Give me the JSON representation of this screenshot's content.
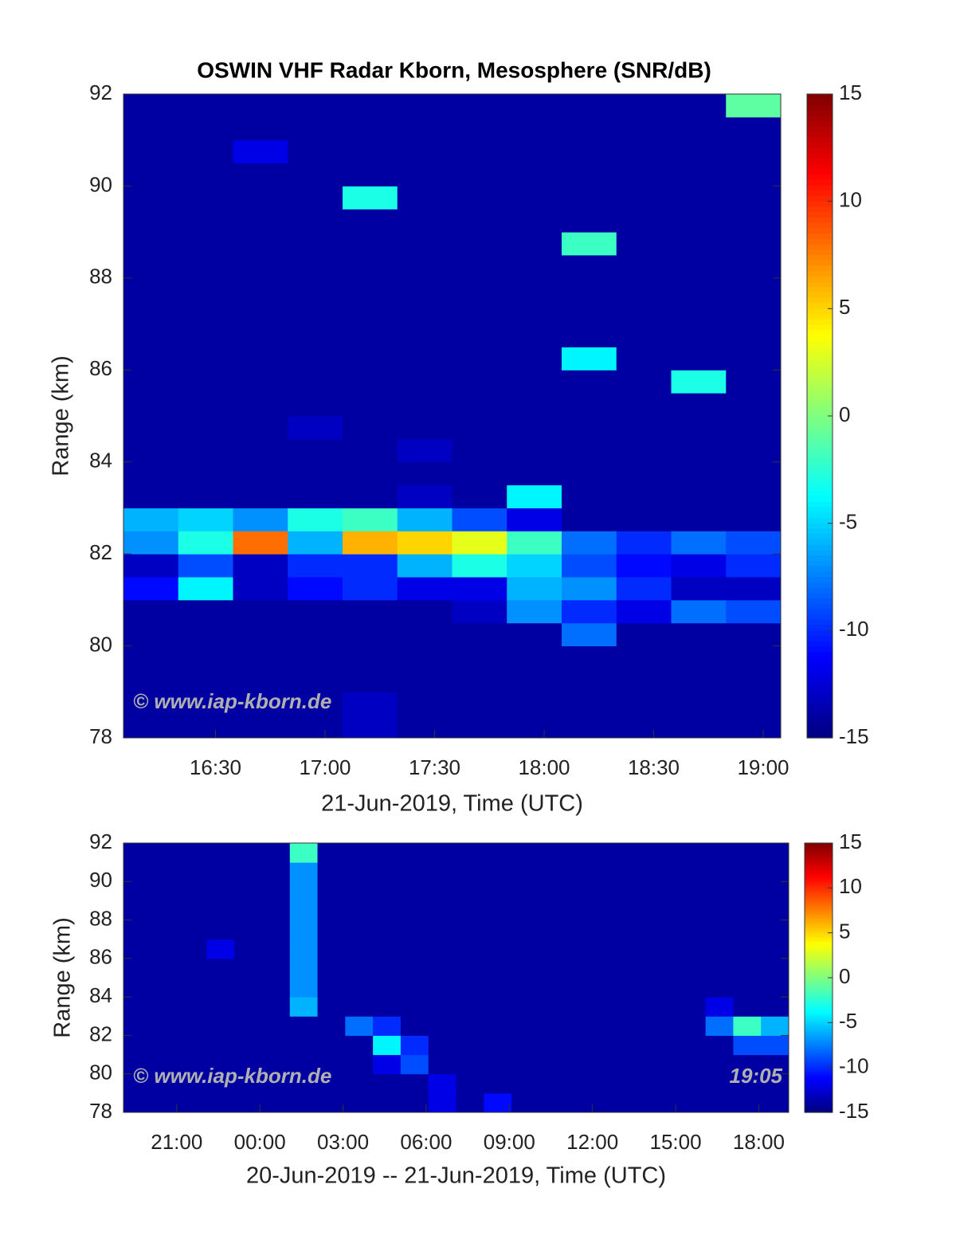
{
  "chart_data": [
    {
      "type": "heatmap",
      "title": "OSWIN VHF Radar Kborn, Mesosphere (SNR/dB)",
      "ylabel": "Range (km)",
      "xlabel": "21-Jun-2019, Time (UTC)",
      "annotation": "© www.iap-kborn.de",
      "xlim": [
        16.08,
        19.08
      ],
      "ylim": [
        78,
        92
      ],
      "xticks": [
        {
          "value": 16.5,
          "label": "16:30"
        },
        {
          "value": 17,
          "label": "17:00"
        },
        {
          "value": 17.5,
          "label": "17:30"
        },
        {
          "value": 18,
          "label": "18:00"
        },
        {
          "value": 18.5,
          "label": "18:30"
        },
        {
          "value": 19,
          "label": "19:00"
        }
      ],
      "yticks": [
        78,
        80,
        82,
        84,
        86,
        88,
        90,
        92
      ],
      "clim": [
        -15,
        15
      ],
      "cticks": [
        -15,
        -10,
        -5,
        0,
        5,
        10,
        15
      ],
      "colormap": "jet",
      "x_bins": [
        16.08,
        16.33,
        16.58,
        16.83,
        17.08,
        17.33,
        17.58,
        17.83,
        18.08,
        18.33,
        18.58,
        18.83,
        19.08
      ],
      "y_bins": [
        78,
        78.5,
        79,
        79.5,
        80,
        80.5,
        81,
        81.5,
        82,
        82.5,
        83,
        83.5,
        84,
        84.5,
        85,
        85.5,
        86,
        86.5,
        87,
        87.5,
        88,
        88.5,
        89,
        89.5,
        90,
        90.5,
        91,
        91.5,
        92
      ],
      "values": [
        [
          -14,
          -14,
          -14,
          -14,
          -13,
          -14,
          -14,
          -14,
          -14,
          -14,
          -14,
          -14
        ],
        [
          -14,
          -14,
          -14,
          -14,
          -13,
          -14,
          -14,
          -14,
          -14,
          -14,
          -14,
          -14
        ],
        [
          -14,
          -14,
          -14,
          -14,
          -14,
          -14,
          -14,
          -14,
          -14,
          -14,
          -14,
          -14
        ],
        [
          -14,
          -14,
          -14,
          -14,
          -14,
          -14,
          -14,
          -14,
          -14,
          -14,
          -14,
          -14
        ],
        [
          -14,
          -14,
          -14,
          -14,
          -14,
          -14,
          -14,
          -14,
          -8,
          -14,
          -14,
          -14
        ],
        [
          -14,
          -14,
          -14,
          -14,
          -14,
          -14,
          -13,
          -7,
          -10,
          -12,
          -8,
          -9
        ],
        [
          -11,
          -4,
          -13,
          -11,
          -10,
          -12,
          -12,
          -6,
          -7,
          -10,
          -13,
          -13
        ],
        [
          -13,
          -9,
          -13,
          -10,
          -10,
          -6,
          -3,
          -5,
          -9,
          -11,
          -12,
          -10
        ],
        [
          -7,
          -3,
          8,
          -6,
          6,
          5,
          3,
          -2,
          -8,
          -10,
          -8,
          -9
        ],
        [
          -6,
          -5,
          -7,
          -3,
          -2,
          -6,
          -9,
          -12,
          -14,
          -14,
          -14,
          -14
        ],
        [
          -14,
          -14,
          -14,
          -14,
          -14,
          -13,
          -14,
          -4,
          -14,
          -14,
          -14,
          -14
        ],
        [
          -14,
          -14,
          -14,
          -14,
          -14,
          -14,
          -14,
          -14,
          -14,
          -14,
          -14,
          -14
        ],
        [
          -14,
          -14,
          -14,
          -14,
          -14,
          -13,
          -14,
          -14,
          -14,
          -14,
          -14,
          -14
        ],
        [
          -14,
          -14,
          -14,
          -13,
          -14,
          -14,
          -14,
          -14,
          -14,
          -14,
          -14,
          -14
        ],
        [
          -14,
          -14,
          -14,
          -14,
          -14,
          -14,
          -14,
          -14,
          -14,
          -14,
          -14,
          -14
        ],
        [
          -14,
          -14,
          -14,
          -14,
          -14,
          -14,
          -14,
          -14,
          -14,
          -14,
          -3,
          -14
        ],
        [
          -14,
          -14,
          -14,
          -14,
          -14,
          -14,
          -14,
          -14,
          -4,
          -14,
          -14,
          -14
        ],
        [
          -14,
          -14,
          -14,
          -14,
          -14,
          -14,
          -14,
          -14,
          -14,
          -14,
          -14,
          -14
        ],
        [
          -14,
          -14,
          -14,
          -14,
          -14,
          -14,
          -14,
          -14,
          -14,
          -14,
          -14,
          -14
        ],
        [
          -14,
          -14,
          -14,
          -14,
          -14,
          -14,
          -14,
          -14,
          -14,
          -14,
          -14,
          -14
        ],
        [
          -14,
          -14,
          -14,
          -14,
          -14,
          -14,
          -14,
          -14,
          -14,
          -14,
          -14,
          -14
        ],
        [
          -14,
          -14,
          -14,
          -14,
          -14,
          -14,
          -14,
          -14,
          -2,
          -14,
          -14,
          -14
        ],
        [
          -14,
          -14,
          -14,
          -14,
          -14,
          -14,
          -14,
          -14,
          -14,
          -14,
          -14,
          -14
        ],
        [
          -14,
          -14,
          -14,
          -14,
          -3,
          -14,
          -14,
          -14,
          -14,
          -14,
          -14,
          -14
        ],
        [
          -14,
          -14,
          -14,
          -14,
          -14,
          -14,
          -14,
          -14,
          -14,
          -14,
          -14,
          -14
        ],
        [
          -14,
          -14,
          -12,
          -14,
          -14,
          -14,
          -14,
          -14,
          -14,
          -14,
          -14,
          -14
        ],
        [
          -14,
          -14,
          -14,
          -14,
          -14,
          -14,
          -14,
          -14,
          -14,
          -14,
          -14,
          -14
        ],
        [
          -14,
          -14,
          -14,
          -14,
          -14,
          -14,
          -14,
          -14,
          -14,
          -14,
          -14,
          -1
        ]
      ]
    },
    {
      "type": "heatmap",
      "ylabel": "Range (km)",
      "xlabel": "20-Jun-2019 -- 21-Jun-2019, Time (UTC)",
      "annotation": "© www.iap-kborn.de",
      "time_label": "19:05",
      "xlim": [
        19.08,
        43.08
      ],
      "ylim": [
        78,
        92
      ],
      "xticks": [
        {
          "value": 21,
          "label": "21:00"
        },
        {
          "value": 24,
          "label": "00:00"
        },
        {
          "value": 27,
          "label": "03:00"
        },
        {
          "value": 30,
          "label": "06:00"
        },
        {
          "value": 33,
          "label": "09:00"
        },
        {
          "value": 36,
          "label": "12:00"
        },
        {
          "value": 39,
          "label": "15:00"
        },
        {
          "value": 42,
          "label": "18:00"
        }
      ],
      "yticks": [
        78,
        80,
        82,
        84,
        86,
        88,
        90,
        92
      ],
      "clim": [
        -15,
        15
      ],
      "cticks": [
        -15,
        -10,
        -5,
        0,
        5,
        10,
        15
      ],
      "colormap": "jet",
      "x_bins": [
        19.08,
        20.08,
        21.08,
        22.08,
        23.08,
        24.08,
        25.08,
        26.08,
        27.08,
        28.08,
        29.08,
        30.08,
        31.08,
        32.08,
        33.08,
        34.08,
        35.08,
        36.08,
        37.08,
        38.08,
        39.08,
        40.08,
        41.08,
        42.08,
        43.08
      ],
      "y_bins": [
        78,
        79,
        80,
        81,
        82,
        83,
        84,
        85,
        86,
        87,
        88,
        89,
        90,
        91,
        92
      ],
      "values": [
        [
          -14,
          -14,
          -14,
          -14,
          -14,
          -14,
          -14,
          -14,
          -14,
          -14,
          -14,
          -12,
          -14,
          -11,
          -14,
          -14,
          -14,
          -14,
          -14,
          -14,
          -14,
          -14,
          -14,
          -14
        ],
        [
          -14,
          -14,
          -14,
          -14,
          -14,
          -14,
          -14,
          -14,
          -14,
          -14,
          -14,
          -12,
          -14,
          -14,
          -14,
          -14,
          -14,
          -14,
          -14,
          -14,
          -14,
          -14,
          -14,
          -14
        ],
        [
          -14,
          -14,
          -14,
          -14,
          -14,
          -14,
          -14,
          -14,
          -14,
          -12,
          -9,
          -14,
          -14,
          -14,
          -14,
          -14,
          -14,
          -14,
          -14,
          -14,
          -14,
          -14,
          -14,
          -14
        ],
        [
          -14,
          -14,
          -14,
          -14,
          -14,
          -14,
          -14,
          -14,
          -14,
          -4,
          -10,
          -14,
          -14,
          -14,
          -14,
          -14,
          -14,
          -14,
          -14,
          -14,
          -14,
          -14,
          -9,
          -9
        ],
        [
          -14,
          -14,
          -14,
          -14,
          -14,
          -14,
          -14,
          -14,
          -8,
          -10,
          -14,
          -14,
          -14,
          -14,
          -14,
          -14,
          -14,
          -14,
          -14,
          -14,
          -14,
          -8,
          -2,
          -6
        ],
        [
          -14,
          -14,
          -14,
          -14,
          -14,
          -14,
          -6,
          -14,
          -14,
          -14,
          -14,
          -14,
          -14,
          -14,
          -14,
          -14,
          -14,
          -14,
          -14,
          -14,
          -14,
          -12,
          -14,
          -14
        ],
        [
          -14,
          -14,
          -14,
          -14,
          -14,
          -14,
          -7,
          -14,
          -14,
          -14,
          -14,
          -14,
          -14,
          -14,
          -14,
          -14,
          -14,
          -14,
          -14,
          -14,
          -14,
          -14,
          -14,
          -14
        ],
        [
          -14,
          -14,
          -14,
          -14,
          -14,
          -14,
          -7,
          -14,
          -14,
          -14,
          -14,
          -14,
          -14,
          -14,
          -14,
          -14,
          -14,
          -14,
          -14,
          -14,
          -14,
          -14,
          -14,
          -14
        ],
        [
          -14,
          -14,
          -14,
          -12,
          -14,
          -14,
          -7,
          -14,
          -14,
          -14,
          -14,
          -14,
          -14,
          -14,
          -14,
          -14,
          -14,
          -14,
          -14,
          -14,
          -14,
          -14,
          -14,
          -14
        ],
        [
          -14,
          -14,
          -14,
          -14,
          -14,
          -14,
          -7,
          -14,
          -14,
          -14,
          -14,
          -14,
          -14,
          -14,
          -14,
          -14,
          -14,
          -14,
          -14,
          -14,
          -14,
          -14,
          -14,
          -14
        ],
        [
          -14,
          -14,
          -14,
          -14,
          -14,
          -14,
          -7,
          -14,
          -14,
          -14,
          -14,
          -14,
          -14,
          -14,
          -14,
          -14,
          -14,
          -14,
          -14,
          -14,
          -14,
          -14,
          -14,
          -14
        ],
        [
          -14,
          -14,
          -14,
          -14,
          -14,
          -14,
          -7,
          -14,
          -14,
          -14,
          -14,
          -14,
          -14,
          -14,
          -14,
          -14,
          -14,
          -14,
          -14,
          -14,
          -14,
          -14,
          -14,
          -14
        ],
        [
          -14,
          -14,
          -14,
          -14,
          -14,
          -14,
          -7,
          -14,
          -14,
          -14,
          -14,
          -14,
          -14,
          -14,
          -14,
          -14,
          -14,
          -14,
          -14,
          -14,
          -14,
          -14,
          -14,
          -14
        ],
        [
          -14,
          -14,
          -14,
          -14,
          -14,
          -14,
          -2,
          -14,
          -14,
          -14,
          -14,
          -14,
          -14,
          -14,
          -14,
          -14,
          -14,
          -14,
          -14,
          -14,
          -14,
          -14,
          -14,
          -14
        ]
      ]
    }
  ]
}
